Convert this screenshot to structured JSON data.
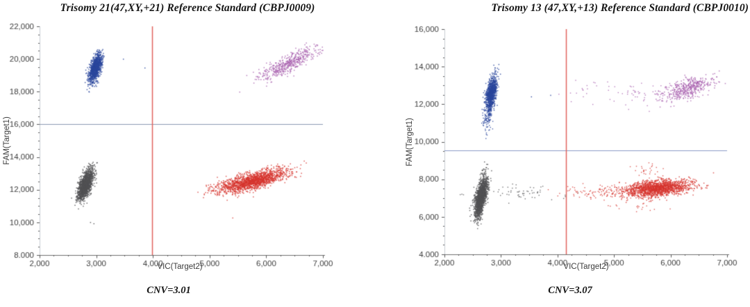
{
  "figure": {
    "background": "#ffffff",
    "axis_text_color": "#3c3c3c",
    "title_color": "#141414"
  },
  "chart_data": [
    {
      "type": "scatter",
      "title": "Trisomy 21(47,XY,+21) Reference Standard (CBPJ0009)",
      "xlabel": "VIC(Target2)",
      "ylabel": "FAM(Target1)",
      "caption": "CNV=3.01",
      "cnv_value": 3.01,
      "xlim": [
        2000,
        7000
      ],
      "ylim": [
        8000,
        22000
      ],
      "x_minor_step": 250,
      "y_minor_step": 500,
      "x_ticks": [
        {
          "value": 2000,
          "label": "2,000"
        },
        {
          "value": 3000,
          "label": "3,000"
        },
        {
          "value": 4000,
          "label": "4,000"
        },
        {
          "value": 5000,
          "label": "5,000"
        },
        {
          "value": 6000,
          "label": "6,000"
        },
        {
          "value": 7000,
          "label": "7,000"
        }
      ],
      "y_ticks": [
        {
          "value": 22000,
          "label": "22,000"
        },
        {
          "value": 20000,
          "label": "20,000"
        },
        {
          "value": 18000,
          "label": "18,000"
        },
        {
          "value": 16000,
          "label": "16,000"
        },
        {
          "value": 14000,
          "label": "14,000"
        },
        {
          "value": 12000,
          "label": "12,000"
        },
        {
          "value": 10000,
          "label": "10,000"
        },
        {
          "value": 8000,
          "label": "8.000"
        }
      ],
      "threshold_h": {
        "y": 16000,
        "color": "#8a99b0"
      },
      "threshold_v": {
        "x": 3980,
        "color": "#e0635e"
      },
      "clusters": [
        {
          "name": "fam-positive",
          "color": "#2a479c",
          "cx": 2980,
          "cy": 19500,
          "sx": 58,
          "sy": 430,
          "rho": 0.55,
          "n": 1000,
          "size": 1.5,
          "alpha": 0.85,
          "extra": [
            [
              3470,
              20020
            ],
            [
              3850,
              19480
            ]
          ]
        },
        {
          "name": "double-positive",
          "color": "#a85fae",
          "cx": 6400,
          "cy": 19780,
          "sx": 280,
          "sy": 540,
          "rho": 0.85,
          "n": 480,
          "size": 1.5,
          "alpha": 0.8,
          "extra": []
        },
        {
          "name": "double-negative",
          "color": "#515154",
          "cx": 2800,
          "cy": 12330,
          "sx": 66,
          "sy": 450,
          "rho": 0.6,
          "n": 1500,
          "size": 1.5,
          "alpha": 0.85,
          "extra": [
            [
              2890,
              10020
            ],
            [
              2950,
              9950
            ]
          ]
        },
        {
          "name": "vic-positive",
          "color": "#d6352e",
          "cx": 5750,
          "cy": 12550,
          "sx": 310,
          "sy": 350,
          "rho": 0.7,
          "n": 1700,
          "size": 1.5,
          "alpha": 0.8,
          "extra": [
            [
              5400,
              10300
            ]
          ]
        }
      ]
    },
    {
      "type": "scatter",
      "title": "Trisomy 13 (47,XY,+13) Reference Standard (CBPJ0010)",
      "xlabel": "VIC(Target2)",
      "ylabel": "FAM(Target1)",
      "caption": "CNV=3.07",
      "cnv_value": 3.07,
      "xlim": [
        2000,
        7000
      ],
      "ylim": [
        4000,
        16000
      ],
      "x_minor_step": 250,
      "y_minor_step": 500,
      "x_ticks": [
        {
          "value": 2000,
          "label": "2,000"
        },
        {
          "value": 3000,
          "label": "3,000"
        },
        {
          "value": 4000,
          "label": "4,000"
        },
        {
          "value": 5000,
          "label": "5,000"
        },
        {
          "value": 6000,
          "label": "6,000"
        },
        {
          "value": 7000,
          "label": "7,000"
        }
      ],
      "y_ticks": [
        {
          "value": 16000,
          "label": "16,000"
        },
        {
          "value": 14000,
          "label": "14,000"
        },
        {
          "value": 12000,
          "label": "12,000"
        },
        {
          "value": 10000,
          "label": "10,000"
        },
        {
          "value": 8000,
          "label": "8,000"
        },
        {
          "value": 6000,
          "label": "6,000"
        },
        {
          "value": 4000,
          "label": "4.000"
        }
      ],
      "threshold_h": {
        "y": 9550,
        "color": "#8a9ac6"
      },
      "threshold_v": {
        "x": 4150,
        "color": "#e0635e"
      },
      "clusters": [
        {
          "name": "fam-positive",
          "color": "#2a479c",
          "cx": 2820,
          "cy": 12600,
          "sx": 48,
          "sy": 470,
          "rho": 0.5,
          "n": 950,
          "size": 1.5,
          "alpha": 0.85,
          "extra": [
            [
              3530,
              12420
            ],
            [
              3870,
              12500
            ]
          ]
        },
        {
          "name": "fam-positive-tail",
          "color": "#2a479c",
          "cx": 2760,
          "cy": 11250,
          "sx": 42,
          "sy": 330,
          "rho": 0.3,
          "n": 90,
          "size": 1.4,
          "alpha": 0.85,
          "extra": []
        },
        {
          "name": "double-positive",
          "color": "#a85fae",
          "cx": 6300,
          "cy": 12850,
          "sx": 230,
          "sy": 320,
          "rho": 0.6,
          "n": 420,
          "size": 1.5,
          "alpha": 0.8,
          "extra": []
        },
        {
          "name": "double-positive-trail",
          "color": "#a85fae",
          "cx": 5350,
          "cy": 12650,
          "sx": 640,
          "sy": 330,
          "rho": 0.1,
          "n": 85,
          "size": 1.4,
          "alpha": 0.8,
          "extra": []
        },
        {
          "name": "double-negative",
          "color": "#515154",
          "cx": 2640,
          "cy": 7150,
          "sx": 54,
          "sy": 470,
          "rho": 0.55,
          "n": 1450,
          "size": 1.5,
          "alpha": 0.85,
          "extra": [
            [
              2700,
              8950
            ],
            [
              2730,
              8650
            ]
          ]
        },
        {
          "name": "double-negative-tail",
          "color": "#515154",
          "cx": 2590,
          "cy": 6150,
          "sx": 40,
          "sy": 300,
          "rho": 0.3,
          "n": 110,
          "size": 1.4,
          "alpha": 0.85,
          "extra": []
        },
        {
          "name": "double-negative-trail",
          "color": "#515154",
          "cx": 3350,
          "cy": 7300,
          "sx": 430,
          "sy": 220,
          "rho": 0.0,
          "n": 65,
          "size": 1.4,
          "alpha": 0.8,
          "extra": []
        },
        {
          "name": "vic-positive",
          "color": "#d6352e",
          "cx": 5750,
          "cy": 7550,
          "sx": 300,
          "sy": 230,
          "rho": 0.35,
          "n": 1600,
          "size": 1.5,
          "alpha": 0.8,
          "extra": []
        },
        {
          "name": "vic-positive-trail",
          "color": "#d6352e",
          "cx": 4800,
          "cy": 7350,
          "sx": 380,
          "sy": 200,
          "rho": 0.0,
          "n": 110,
          "size": 1.4,
          "alpha": 0.8,
          "extra": []
        },
        {
          "name": "vic-positive-plume",
          "color": "#d6352e",
          "cx": 5600,
          "cy": 8450,
          "sx": 160,
          "sy": 230,
          "rho": 0.0,
          "n": 28,
          "size": 1.4,
          "alpha": 0.8,
          "extra": []
        },
        {
          "name": "vic-positive-below",
          "color": "#d6352e",
          "cx": 5400,
          "cy": 6480,
          "sx": 260,
          "sy": 160,
          "rho": 0.0,
          "n": 16,
          "size": 1.4,
          "alpha": 0.8,
          "extra": []
        }
      ]
    }
  ]
}
